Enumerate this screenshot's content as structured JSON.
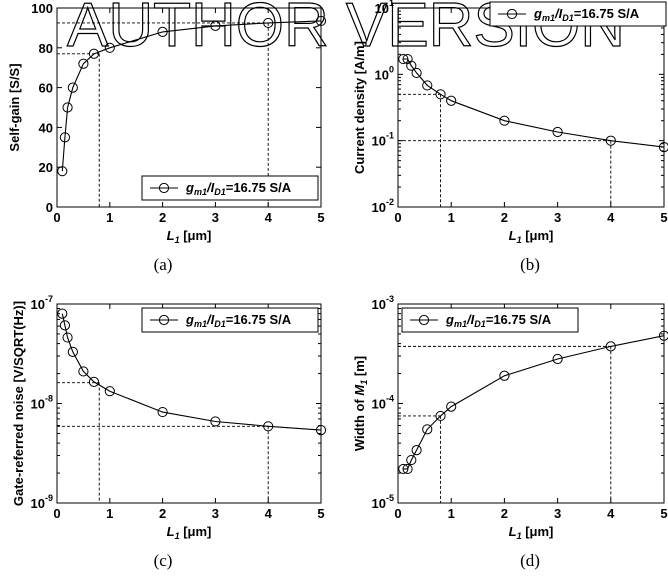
{
  "watermark": "AUTHOR VERSION",
  "chart_data": [
    {
      "type": "line",
      "caption": "(a)",
      "xlabel": "L1 [μm]",
      "ylabel": "Self-gain [S/S]",
      "xlim": [
        0,
        5
      ],
      "ylim": [
        0,
        100
      ],
      "yscale": "linear",
      "xticks": [
        0,
        1,
        2,
        3,
        4,
        5
      ],
      "yticks": [
        0,
        20,
        40,
        60,
        80,
        100
      ],
      "legend": "gm1/ID1=16.75 S/A",
      "legend_position": "bottom-right",
      "series": [
        {
          "x": [
            0.1,
            0.15,
            0.2,
            0.3,
            0.5,
            0.7,
            1,
            2,
            3,
            4,
            5
          ],
          "y": [
            18,
            35,
            50,
            60,
            72,
            77,
            80,
            88,
            91,
            92.5,
            93.5
          ]
        }
      ],
      "reference_points": [
        {
          "x": 0.8,
          "y": 77
        },
        {
          "x": 4,
          "y": 92.5
        }
      ]
    },
    {
      "type": "line",
      "caption": "(b)",
      "xlabel": "L1 [μm]",
      "ylabel": "Current density [A/m]",
      "xlim": [
        0,
        5
      ],
      "ylim": [
        0.01,
        10
      ],
      "yscale": "log",
      "xticks": [
        0,
        1,
        2,
        3,
        4,
        5
      ],
      "yticks": [
        0.01,
        0.1,
        1,
        10
      ],
      "ytick_exponents": [
        "-2",
        "-1",
        "0",
        "1"
      ],
      "legend": "gm1/ID1=16.75 S/A",
      "legend_position": "top-right",
      "series": [
        {
          "x": [
            0.1,
            0.18,
            0.25,
            0.35,
            0.55,
            0.8,
            1,
            2,
            3,
            4,
            5
          ],
          "y": [
            1.7,
            1.7,
            1.35,
            1.05,
            0.68,
            0.5,
            0.4,
            0.2,
            0.135,
            0.1,
            0.08
          ]
        }
      ],
      "reference_points": [
        {
          "x": 0.8,
          "y": 0.5
        },
        {
          "x": 4,
          "y": 0.1
        }
      ]
    },
    {
      "type": "line",
      "caption": "(c)",
      "xlabel": "L1 [μm]",
      "ylabel": "Gate-referred noise [V/SQRT(Hz)]",
      "xlim": [
        0,
        5
      ],
      "ylim": [
        1e-09,
        1e-07
      ],
      "yscale": "log",
      "xticks": [
        0,
        1,
        2,
        3,
        4,
        5
      ],
      "yticks": [
        1e-09,
        1e-08,
        1e-07
      ],
      "ytick_exponents": [
        "-9",
        "-8",
        "-7"
      ],
      "legend": "gm1/ID1=16.75 S/A",
      "legend_position": "top-right",
      "series": [
        {
          "x": [
            0.1,
            0.15,
            0.2,
            0.3,
            0.5,
            0.7,
            1,
            2,
            3,
            4,
            5
          ],
          "y": [
            8e-08,
            6.1e-08,
            4.6e-08,
            3.3e-08,
            2.1e-08,
            1.65e-08,
            1.33e-08,
            8.2e-09,
            6.6e-09,
            5.9e-09,
            5.4e-09
          ]
        }
      ],
      "reference_points": [
        {
          "x": 0.8,
          "y": 1.62e-08
        },
        {
          "x": 4,
          "y": 5.9e-09
        }
      ]
    },
    {
      "type": "line",
      "caption": "(d)",
      "xlabel": "L1 [μm]",
      "ylabel": "Width of M1 [m]",
      "xlim": [
        0,
        5
      ],
      "ylim": [
        1e-05,
        0.001
      ],
      "yscale": "log",
      "xticks": [
        0,
        1,
        2,
        3,
        4,
        5
      ],
      "yticks": [
        1e-05,
        0.0001,
        0.001
      ],
      "ytick_exponents": [
        "-5",
        "-4",
        "-3"
      ],
      "legend": "gm1/ID1=16.75 S/A",
      "legend_position": "top-left",
      "series": [
        {
          "x": [
            0.1,
            0.18,
            0.25,
            0.35,
            0.55,
            0.8,
            1,
            2,
            3,
            4,
            5
          ],
          "y": [
            2.2e-05,
            2.2e-05,
            2.7e-05,
            3.4e-05,
            5.5e-05,
            7.5e-05,
            9.3e-05,
            0.00019,
            0.00028,
            0.000375,
            0.00048
          ]
        }
      ],
      "reference_points": [
        {
          "x": 0.8,
          "y": 7.5e-05
        },
        {
          "x": 4,
          "y": 0.000375
        }
      ]
    }
  ]
}
